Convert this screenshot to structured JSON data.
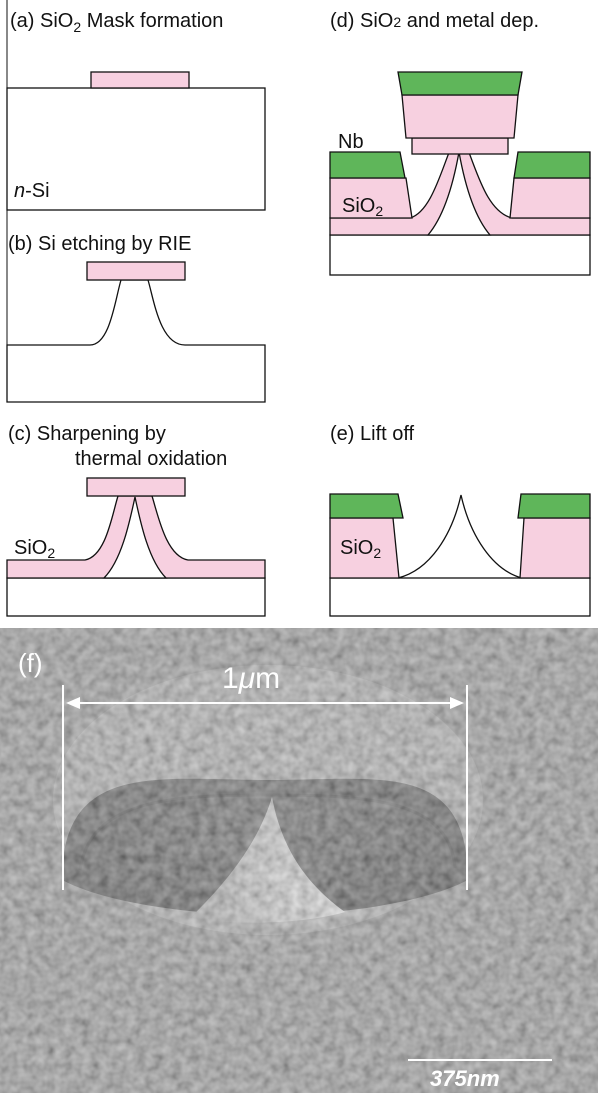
{
  "panels": {
    "a": {
      "title": [
        "(a) SiO",
        "2",
        " Mask formation"
      ],
      "substrate_label": [
        "n",
        "-Si"
      ]
    },
    "b": {
      "title": "(b) Si etching by RIE"
    },
    "c": {
      "title": [
        "(c) Sharpening by",
        "thermal oxidation"
      ],
      "oxide_label": [
        "SiO",
        "2"
      ]
    },
    "d": {
      "title": [
        "(d) SiO",
        "2",
        " and metal dep."
      ],
      "metal_label": "Nb",
      "oxide_label": [
        "SiO",
        "2"
      ]
    },
    "e": {
      "title": "(e) Lift off",
      "oxide_label": [
        "SiO",
        "2"
      ]
    },
    "f": {
      "label": "(f)",
      "dimension": [
        "1",
        "μ",
        "m"
      ],
      "scale_bar": "375nm"
    }
  }
}
